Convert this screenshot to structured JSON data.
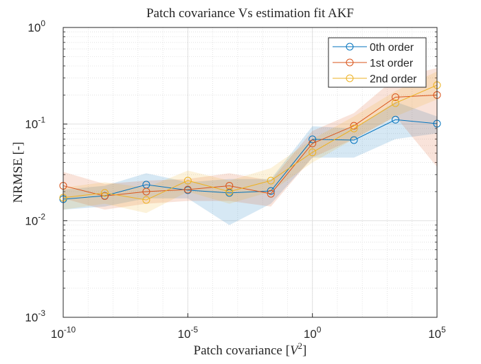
{
  "chart_data": {
    "type": "line",
    "title": "Patch covariance Vs estimation fit AKF",
    "x_label": {
      "text": "Patch covariance [",
      "var": "V",
      "exp": "2",
      "end": "]"
    },
    "y_label": "NRMSE [-]",
    "x": [
      1e-10,
      4.6416e-09,
      2.1544e-07,
      1e-05,
      0.00046416,
      0.021544,
      1,
      46.416,
      2154.4,
      100000
    ],
    "series": [
      {
        "name": "0th order",
        "color": "#0072BD",
        "values": [
          0.0167,
          0.0181,
          0.0236,
          0.0207,
          0.0194,
          0.0203,
          0.0695,
          0.0683,
          0.111,
          0.101
        ],
        "lower": [
          0.013,
          0.014,
          0.017,
          0.017,
          0.009,
          0.015,
          0.045,
          0.045,
          0.07,
          0.08
        ],
        "upper": [
          0.021,
          0.023,
          0.031,
          0.025,
          0.027,
          0.027,
          0.095,
          0.09,
          0.17,
          0.12
        ]
      },
      {
        "name": "1st order",
        "color": "#D95319",
        "values": [
          0.023,
          0.018,
          0.02,
          0.021,
          0.023,
          0.019,
          0.063,
          0.096,
          0.19,
          0.2
        ],
        "lower": [
          0.017,
          0.013,
          0.015,
          0.016,
          0.016,
          0.014,
          0.045,
          0.07,
          0.12,
          0.036
        ],
        "upper": [
          0.032,
          0.024,
          0.026,
          0.027,
          0.031,
          0.026,
          0.085,
          0.13,
          0.3,
          0.38
        ]
      },
      {
        "name": "2nd order",
        "color": "#EDB120",
        "values": [
          0.0173,
          0.0194,
          0.0164,
          0.026,
          0.02,
          0.026,
          0.051,
          0.09,
          0.165,
          0.253
        ],
        "lower": [
          0.013,
          0.015,
          0.012,
          0.02,
          0.015,
          0.02,
          0.04,
          0.07,
          0.12,
          0.18
        ],
        "upper": [
          0.022,
          0.025,
          0.022,
          0.033,
          0.026,
          0.035,
          0.07,
          0.12,
          0.22,
          0.35
        ]
      }
    ],
    "xlim": [
      1e-10,
      100000
    ],
    "ylim": [
      0.001,
      1
    ],
    "xticks": [
      {
        "value": 1e-10,
        "label": "10",
        "exp": "-10"
      },
      {
        "value": 1e-05,
        "label": "10",
        "exp": "-5"
      },
      {
        "value": 1,
        "label": "10",
        "exp": "0"
      },
      {
        "value": 100000,
        "label": "10",
        "exp": "5"
      }
    ],
    "yticks": [
      {
        "value": 0.001,
        "label": "10",
        "exp": "-3"
      },
      {
        "value": 0.01,
        "label": "10",
        "exp": "-2"
      },
      {
        "value": 0.1,
        "label": "10",
        "exp": "-1"
      },
      {
        "value": 1,
        "label": "10",
        "exp": "0"
      }
    ],
    "xscale": "log",
    "yscale": "log",
    "grid": true,
    "minor_grid": true,
    "legend": "upper right"
  }
}
